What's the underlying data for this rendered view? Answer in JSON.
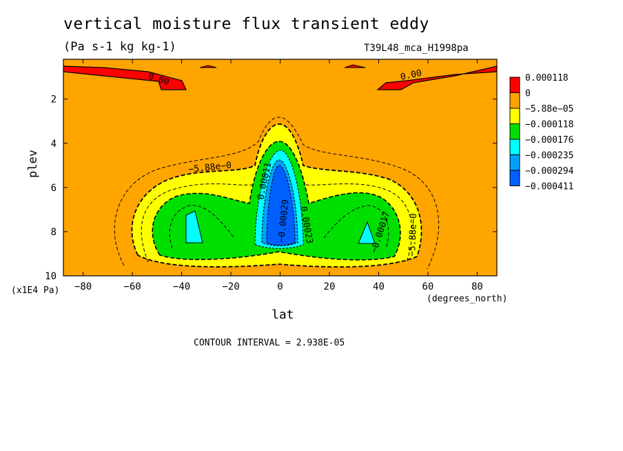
{
  "title": "vertical moisture flux transient eddy",
  "units": "(Pa s-1 kg kg-1)",
  "dataset": "T39L48_mca_H1998pa",
  "contour_interval": "CONTOUR INTERVAL = 2.938E-05",
  "chart_data": {
    "type": "contour",
    "xlabel": "lat",
    "x_unit_label": "(degrees_north)",
    "ylabel": "plev",
    "y_unit_label": "(x1E4 Pa)",
    "xlim": [
      -88,
      88
    ],
    "ylim": [
      10,
      0.2
    ],
    "x_ticks": [
      -80,
      -60,
      -40,
      -20,
      0,
      20,
      40,
      60,
      80
    ],
    "x_tick_labels": [
      "-80",
      "-60",
      "-40",
      "-20",
      "0",
      "20",
      "40",
      "60",
      "80"
    ],
    "y_ticks": [
      2,
      4,
      6,
      8,
      10
    ],
    "y_tick_labels": [
      "2",
      "4",
      "6",
      "8",
      "10"
    ],
    "levels": [
      {
        "label": "0.000118",
        "color": "#ff0000"
      },
      {
        "label": "0",
        "color": "#ffa500"
      },
      {
        "label": "−5.88e−05",
        "color": "#ffff00"
      },
      {
        "label": "−0.000118",
        "color": "#00e000"
      },
      {
        "label": "−0.000176",
        "color": "#00ffff"
      },
      {
        "label": "−0.000235",
        "color": "#00a0ff"
      },
      {
        "label": "−0.000294",
        "color": "#0060ff"
      },
      {
        "label": "−0.000411",
        "color": ""
      }
    ],
    "contour_labels": [
      "0.00",
      "0.00",
      "−5.88e−0",
      "0.00011",
      "−0.00029",
      "0.00023",
      "−0.00017",
      "−5.88e−0"
    ],
    "regions": [
      {
        "level": "0",
        "desc": "background field"
      },
      {
        "level": "0.000118",
        "lat_range": [
          -88,
          -40
        ],
        "plev_range": [
          0.2,
          1.1
        ]
      },
      {
        "level": "0.000118",
        "lat_range": [
          40,
          88
        ],
        "plev_range": [
          0.2,
          1.1
        ]
      },
      {
        "level": "-5.88e-05",
        "lat_range": [
          -57,
          57
        ],
        "plev_range": [
          3.2,
          9.8
        ]
      },
      {
        "level": "-0.000118",
        "lat_range": [
          -48,
          50
        ],
        "plev_range": [
          4.0,
          9.6
        ]
      },
      {
        "level": "-0.000176",
        "lat_range": [
          -38,
          -32
        ],
        "plev_range": [
          7.1,
          8.5
        ]
      },
      {
        "level": "-0.000176",
        "lat_range": [
          33,
          38
        ],
        "plev_range": [
          7.8,
          8.6
        ]
      },
      {
        "level": "-0.000294",
        "lat_range": [
          -9,
          8
        ],
        "plev_range": [
          4.2,
          9.0
        ]
      }
    ]
  }
}
